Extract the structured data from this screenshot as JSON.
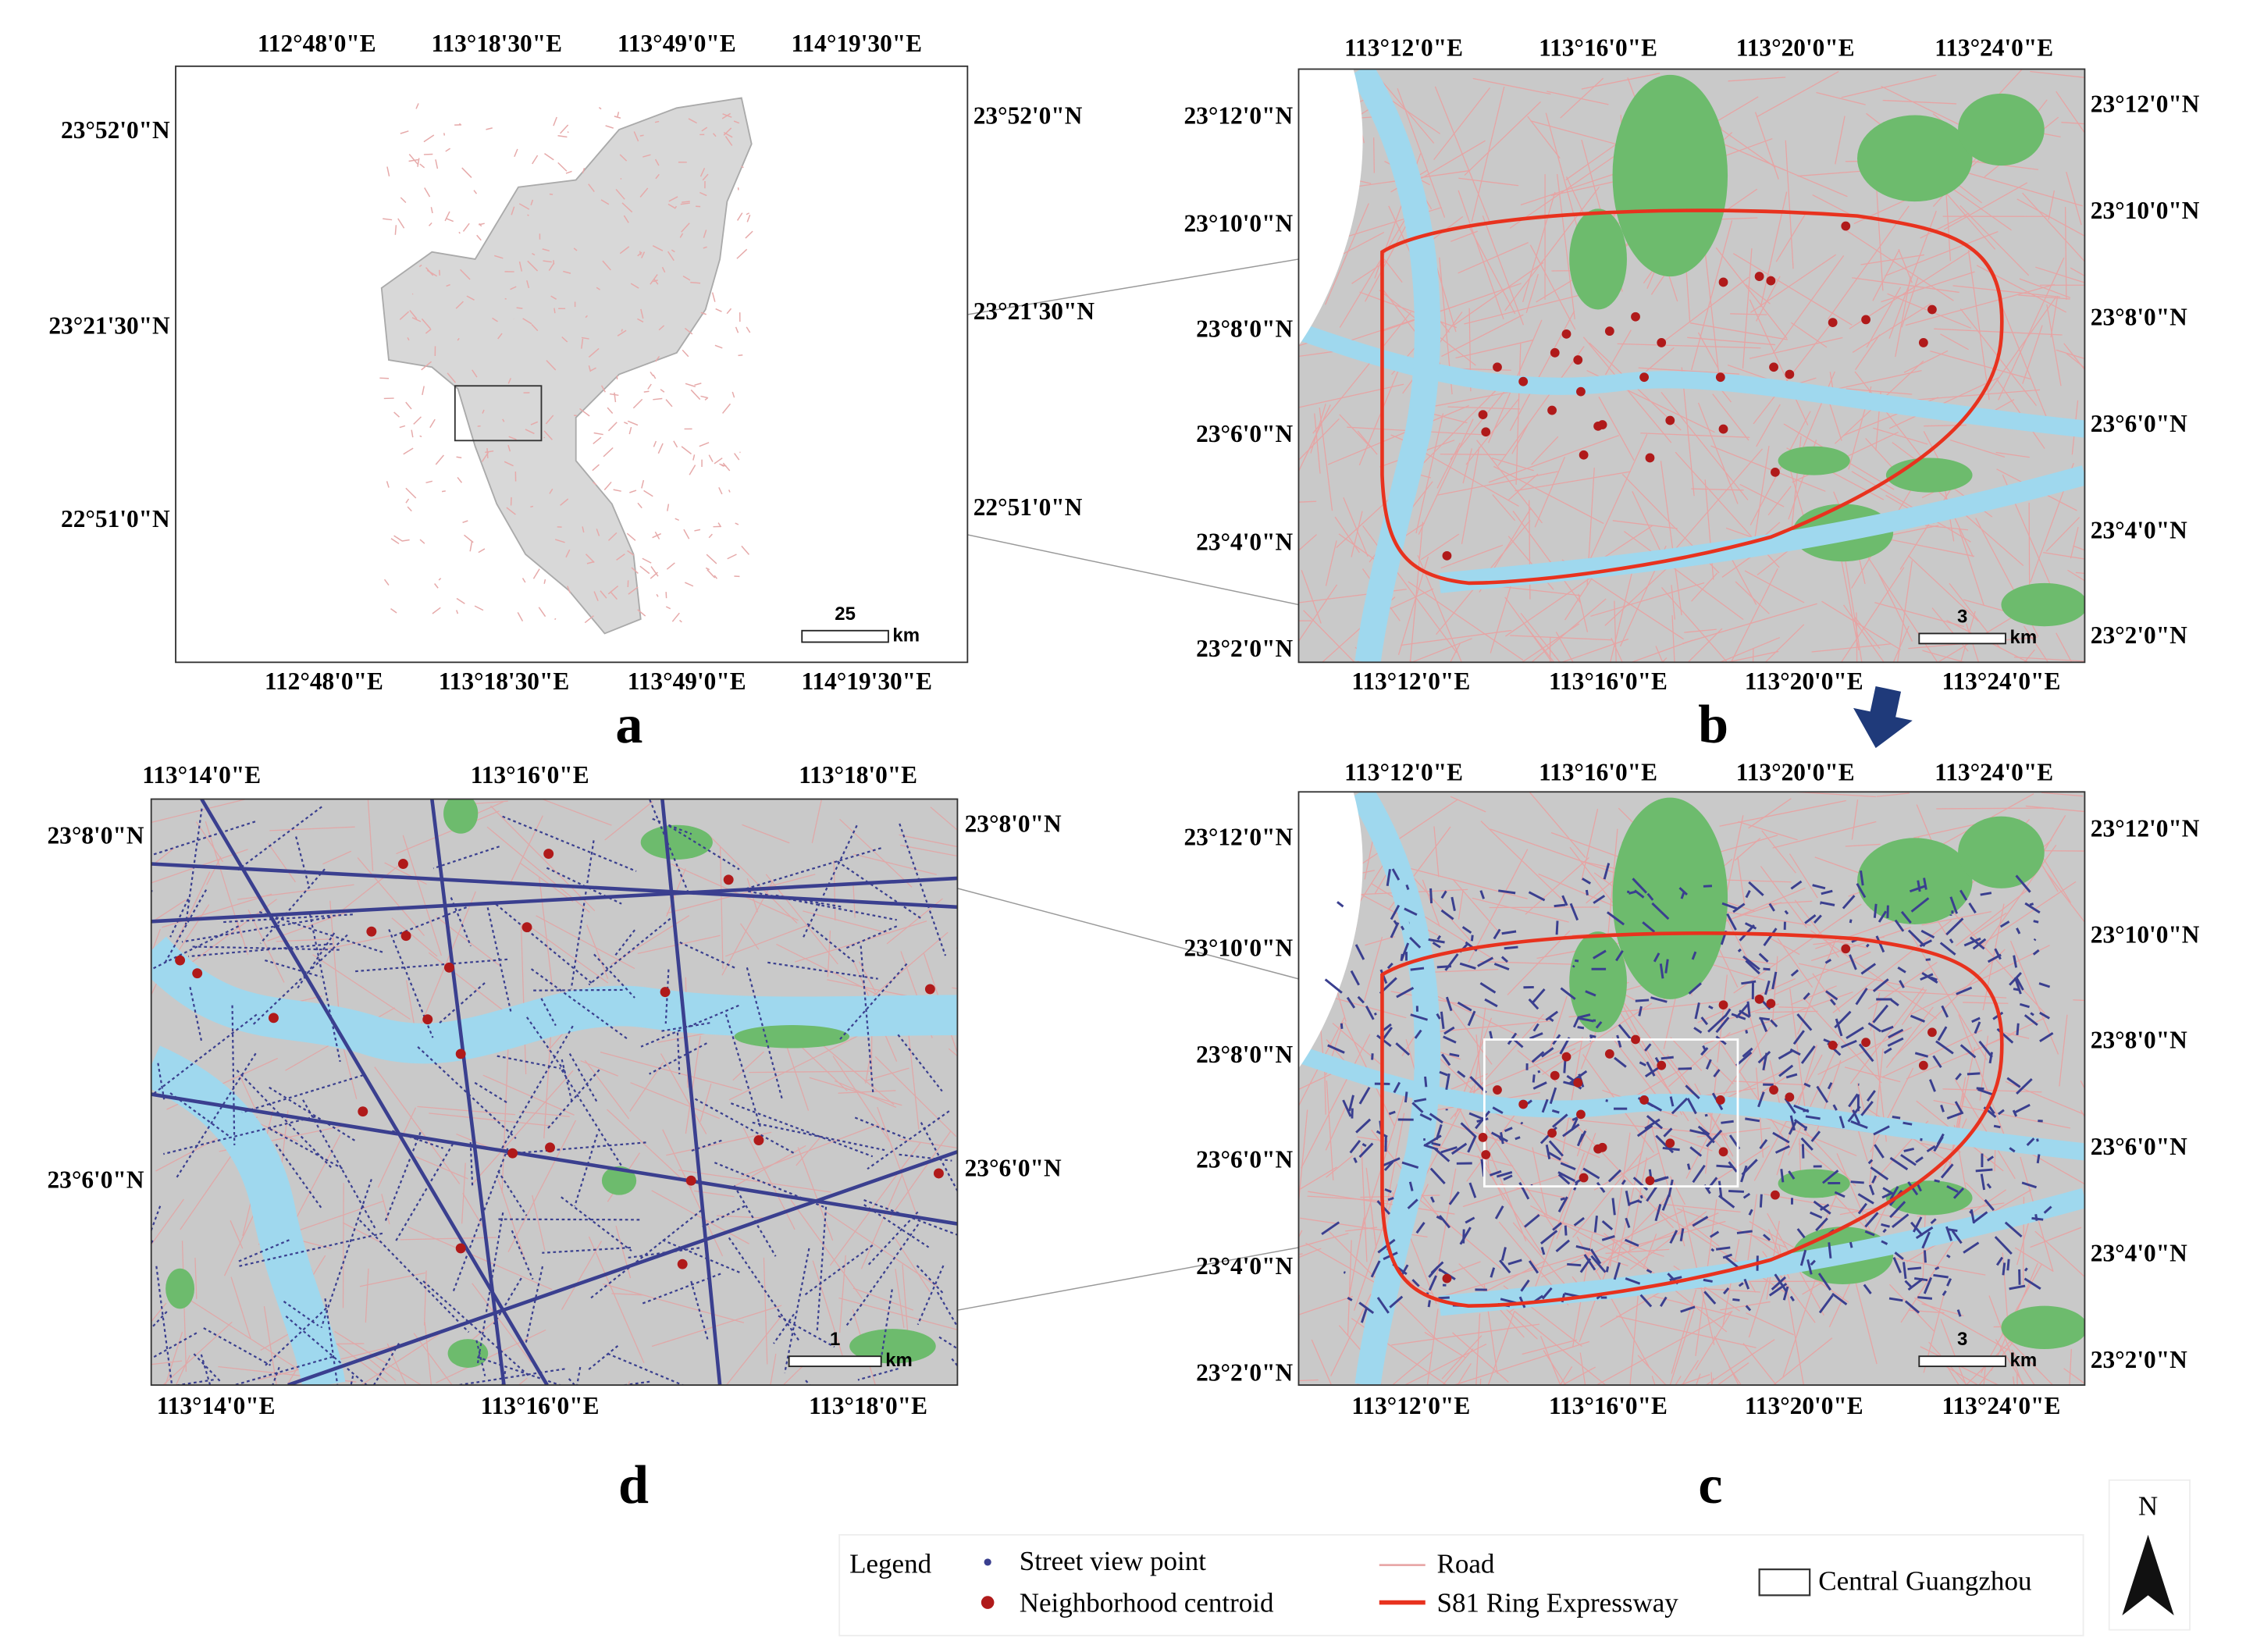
{
  "panels": [
    {
      "label": "a",
      "top_labels": [
        "112°48'0\"E",
        "113°18'30\"E",
        "113°49'0\"E",
        "114°19'30\"E"
      ],
      "bottom_labels": [
        "112°48'0\"E",
        "113°18'30\"E",
        "113°49'0\"E",
        "114°19'30\"E"
      ],
      "left_labels": [
        "23°52'0\"N",
        "23°21'30\"N",
        "22°51'0\"N"
      ],
      "right_labels": [
        "23°52'0\"N",
        "23°21'30\"N",
        "22°51'0\"N"
      ],
      "scale_bar": {
        "value": 25,
        "unit": "km"
      }
    },
    {
      "label": "b",
      "top_labels": [
        "113°12'0\"E",
        "113°16'0\"E",
        "113°20'0\"E",
        "113°24'0\"E"
      ],
      "bottom_labels": [
        "113°12'0\"E",
        "113°16'0\"E",
        "113°20'0\"E",
        "113°24'0\"E"
      ],
      "left_labels": [
        "23°12'0\"N",
        "23°10'0\"N",
        "23°8'0\"N",
        "23°6'0\"N",
        "23°4'0\"N",
        "23°2'0\"N"
      ],
      "right_labels": [
        "23°12'0\"N",
        "23°10'0\"N",
        "23°8'0\"N",
        "23°6'0\"N",
        "23°4'0\"N",
        "23°2'0\"N"
      ],
      "scale_bar": {
        "value": 3,
        "unit": "km"
      }
    },
    {
      "label": "c",
      "top_labels": [
        "113°12'0\"E",
        "113°16'0\"E",
        "113°20'0\"E",
        "113°24'0\"E"
      ],
      "bottom_labels": [
        "113°12'0\"E",
        "113°16'0\"E",
        "113°20'0\"E",
        "113°24'0\"E"
      ],
      "left_labels": [
        "23°12'0\"N",
        "23°10'0\"N",
        "23°8'0\"N",
        "23°6'0\"N",
        "23°4'0\"N",
        "23°2'0\"N"
      ],
      "right_labels": [
        "23°12'0\"N",
        "23°10'0\"N",
        "23°8'0\"N",
        "23°6'0\"N",
        "23°4'0\"N",
        "23°2'0\"N"
      ],
      "scale_bar": {
        "value": 3,
        "unit": "km"
      }
    },
    {
      "label": "d",
      "top_labels": [
        "113°14'0\"E",
        "113°16'0\"E",
        "113°18'0\"E"
      ],
      "bottom_labels": [
        "113°14'0\"E",
        "113°16'0\"E",
        "113°18'0\"E"
      ],
      "left_labels": [
        "23°8'0\"N",
        "23°6'0\"N"
      ],
      "right_labels": [
        "23°8'0\"N",
        "23°6'0\"N"
      ],
      "scale_bar": {
        "value": 1,
        "unit": "km"
      }
    }
  ],
  "legend": {
    "title": "Legend",
    "items": [
      "Street view point",
      "Neighborhood centroid",
      "Road",
      "S81 Ring Expressway",
      "Central Guangzhou"
    ]
  },
  "north_arrow": "N"
}
